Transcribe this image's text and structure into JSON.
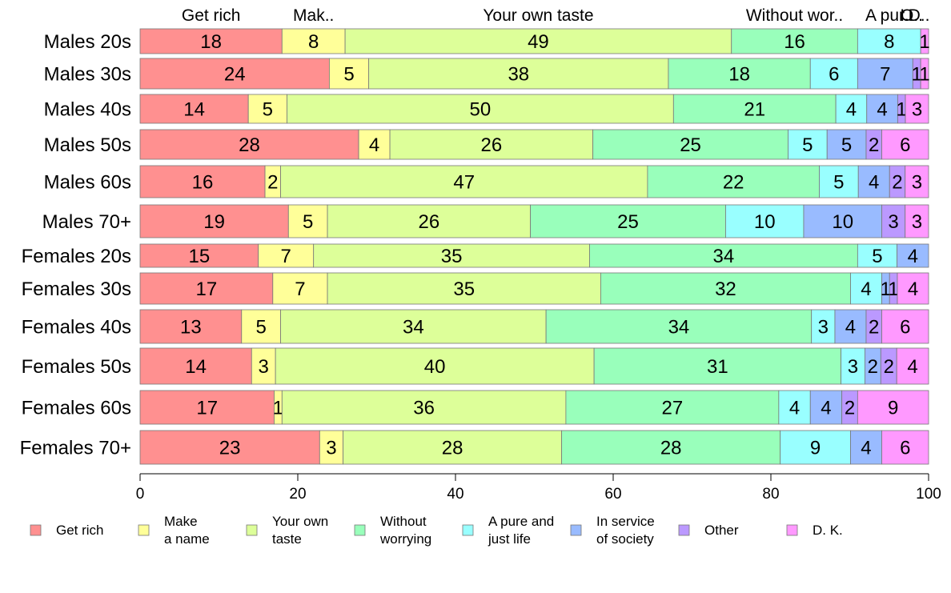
{
  "chart_data": {
    "type": "bar",
    "orientation": "horizontal",
    "stacked": true,
    "xlim": [
      0,
      100
    ],
    "xticks": [
      "0",
      "20",
      "40",
      "60",
      "80",
      "100"
    ],
    "grid": false,
    "legend_position": "bottom",
    "categories": [
      "Males 20s",
      "Males 30s",
      "Males 40s",
      "Males 50s",
      "Males 60s",
      "Males 70+",
      "Females 20s",
      "Females 30s",
      "Females 40s",
      "Females 50s",
      "Females 60s",
      "Females 70+"
    ],
    "top_labels": [
      "Get rich",
      "Mak..",
      "Your own taste",
      "Without wor..",
      "A pur..",
      "I..",
      "O..",
      "D.."
    ],
    "series": [
      {
        "name": "Get rich",
        "legend_lines": [
          "Get rich"
        ],
        "color": "#ff9090",
        "values": [
          18,
          24,
          14,
          28,
          16,
          19,
          15,
          17,
          13,
          14,
          17,
          23
        ]
      },
      {
        "name": "Make a name",
        "legend_lines": [
          "Make",
          "a name"
        ],
        "color": "#ffff99",
        "values": [
          8,
          5,
          5,
          4,
          2,
          5,
          7,
          7,
          5,
          3,
          1,
          3
        ]
      },
      {
        "name": "Your own taste",
        "legend_lines": [
          "Your own",
          "taste"
        ],
        "color": "#ddff99",
        "values": [
          49,
          38,
          50,
          26,
          47,
          26,
          35,
          35,
          34,
          40,
          36,
          28
        ]
      },
      {
        "name": "Without worrying",
        "legend_lines": [
          "Without",
          "worrying"
        ],
        "color": "#99ffbb",
        "values": [
          16,
          18,
          21,
          25,
          22,
          25,
          34,
          32,
          34,
          31,
          27,
          28
        ]
      },
      {
        "name": "A pure and just life",
        "legend_lines": [
          "A pure and",
          "just life"
        ],
        "color": "#99ffff",
        "values": [
          8,
          6,
          4,
          5,
          5,
          10,
          5,
          4,
          3,
          3,
          4,
          9
        ]
      },
      {
        "name": "In service of society",
        "legend_lines": [
          "In service",
          "of society"
        ],
        "color": "#99bbff",
        "values": [
          0,
          7,
          4,
          5,
          4,
          10,
          4,
          1,
          4,
          2,
          4,
          4
        ]
      },
      {
        "name": "Other",
        "legend_lines": [
          "Other"
        ],
        "color": "#bb99ff",
        "values": [
          0,
          1,
          1,
          2,
          2,
          3,
          0,
          1,
          2,
          2,
          2,
          0
        ]
      },
      {
        "name": "D. K.",
        "legend_lines": [
          "D. K."
        ],
        "color": "#ff99ff",
        "values": [
          1,
          1,
          3,
          6,
          3,
          3,
          0,
          4,
          6,
          4,
          9,
          6
        ]
      }
    ]
  }
}
